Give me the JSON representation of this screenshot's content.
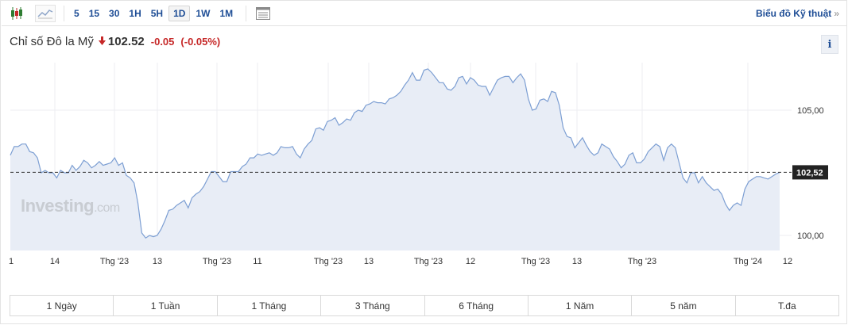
{
  "toolbar": {
    "chart_type_icons": [
      "candlestick-icon",
      "line-chart-icon"
    ],
    "intervals": [
      "5",
      "15",
      "30",
      "1H",
      "5H",
      "1D",
      "1W",
      "1M"
    ],
    "active_interval": "1D",
    "tech_chart_link": "Biểu đồ Kỹ thuật",
    "tech_chart_chevron": "»"
  },
  "header": {
    "instrument": "Chỉ số Đô la Mỹ",
    "direction_icon": "down-arrow-icon",
    "last": "102.52",
    "change": "-0.05",
    "change_pct": "(-0.05%)",
    "info_label": "i"
  },
  "colors": {
    "line": "#7d9fd3",
    "area": "#e8edf6",
    "negative": "#c62828",
    "link": "#1f4e96"
  },
  "watermark": {
    "brand": "Investing",
    "suffix": ".com"
  },
  "chart_data": {
    "type": "area",
    "title": "",
    "xlabel": "",
    "ylabel": "",
    "x_tick_labels": [
      "1",
      "14",
      "Thg '23",
      "13",
      "Thg '23",
      "11",
      "Thg '23",
      "13",
      "Thg '23",
      "12",
      "Thg '23",
      "13",
      "Thg '23",
      "Thg '24",
      "12"
    ],
    "y_tick_labels": [
      "105,00",
      "100,00"
    ],
    "ylim": [
      99.4,
      106.9
    ],
    "current_price_label": "102,52",
    "current_price": 102.52,
    "grid": true,
    "legend": "none",
    "series": [
      {
        "values": [
          103.2,
          103.55,
          103.55,
          103.65,
          103.65,
          103.35,
          103.3,
          103.1,
          102.5,
          102.6,
          102.5,
          102.5,
          102.3,
          102.6,
          102.5,
          102.5,
          102.8,
          102.6,
          102.75,
          103.0,
          102.9,
          102.7,
          102.8,
          102.95,
          102.8,
          102.85,
          102.9,
          103.1,
          102.8,
          102.9,
          102.4,
          102.3,
          102.1,
          101.3,
          100.1,
          99.9,
          100.0,
          99.95,
          100.0,
          100.25,
          100.6,
          101.0,
          101.05,
          101.2,
          101.3,
          101.4,
          101.1,
          101.5,
          101.65,
          101.75,
          101.95,
          102.25,
          102.55,
          102.55,
          102.35,
          102.15,
          102.15,
          102.55,
          102.55,
          102.55,
          102.75,
          102.85,
          103.1,
          103.1,
          103.25,
          103.2,
          103.25,
          103.3,
          103.2,
          103.3,
          103.55,
          103.5,
          103.5,
          103.55,
          103.25,
          103.1,
          103.45,
          103.65,
          103.8,
          104.25,
          104.3,
          104.2,
          104.55,
          104.6,
          104.7,
          104.4,
          104.5,
          104.65,
          104.6,
          104.9,
          105.0,
          104.95,
          105.2,
          105.25,
          105.35,
          105.3,
          105.3,
          105.25,
          105.45,
          105.5,
          105.6,
          105.75,
          106.0,
          106.2,
          106.5,
          106.2,
          106.2,
          106.6,
          106.65,
          106.5,
          106.3,
          106.1,
          106.1,
          105.85,
          105.8,
          105.95,
          106.3,
          106.35,
          106.05,
          106.3,
          106.2,
          106.0,
          105.95,
          105.95,
          105.6,
          105.9,
          106.2,
          106.3,
          106.35,
          106.35,
          106.1,
          106.3,
          106.45,
          106.2,
          105.45,
          105.0,
          105.05,
          105.4,
          105.45,
          105.35,
          105.75,
          105.7,
          105.2,
          104.3,
          103.95,
          103.9,
          103.5,
          103.7,
          103.9,
          103.6,
          103.35,
          103.2,
          103.3,
          103.65,
          103.55,
          103.45,
          103.15,
          102.95,
          102.7,
          102.85,
          103.2,
          103.3,
          102.9,
          102.9,
          103.05,
          103.35,
          103.5,
          103.65,
          103.55,
          103.0,
          103.5,
          103.65,
          103.5,
          102.9,
          102.3,
          102.1,
          102.5,
          102.5,
          102.1,
          102.35,
          102.1,
          101.95,
          101.8,
          101.85,
          101.65,
          101.25,
          101.0,
          101.2,
          101.3,
          101.2,
          101.85,
          102.15,
          102.25,
          102.35,
          102.35,
          102.3,
          102.25,
          102.35,
          102.45,
          102.52
        ]
      }
    ]
  },
  "ranges": [
    "1 Ngày",
    "1 Tuần",
    "1 Tháng",
    "3 Tháng",
    "6 Tháng",
    "1 Năm",
    "5 năm",
    "T.đa"
  ]
}
